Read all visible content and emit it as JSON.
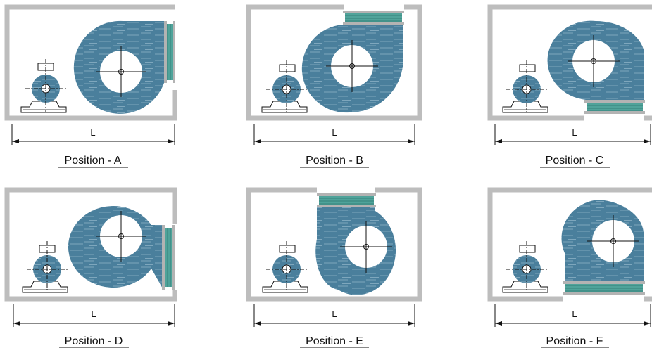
{
  "colors": {
    "frame": "#bdbdbd",
    "fan_body": "#4a7f9c",
    "fan_streak": "#8fb4c8",
    "bellows": "#4fa39a",
    "bellows_flange": "#b3b3b3",
    "line": "#111111"
  },
  "panels": [
    {
      "id": "A",
      "caption": "Position - A",
      "dimension_label": "L",
      "outlet": "right"
    },
    {
      "id": "B",
      "caption": "Position - B",
      "dimension_label": "L",
      "outlet": "top"
    },
    {
      "id": "C",
      "caption": "Position - C",
      "dimension_label": "L",
      "outlet": "bottom"
    },
    {
      "id": "D",
      "caption": "Position - D",
      "dimension_label": "L",
      "outlet": "right"
    },
    {
      "id": "E",
      "caption": "Position - E",
      "dimension_label": "L",
      "outlet": "top"
    },
    {
      "id": "F",
      "caption": "Position - F",
      "dimension_label": "L",
      "outlet": "bottom"
    }
  ]
}
